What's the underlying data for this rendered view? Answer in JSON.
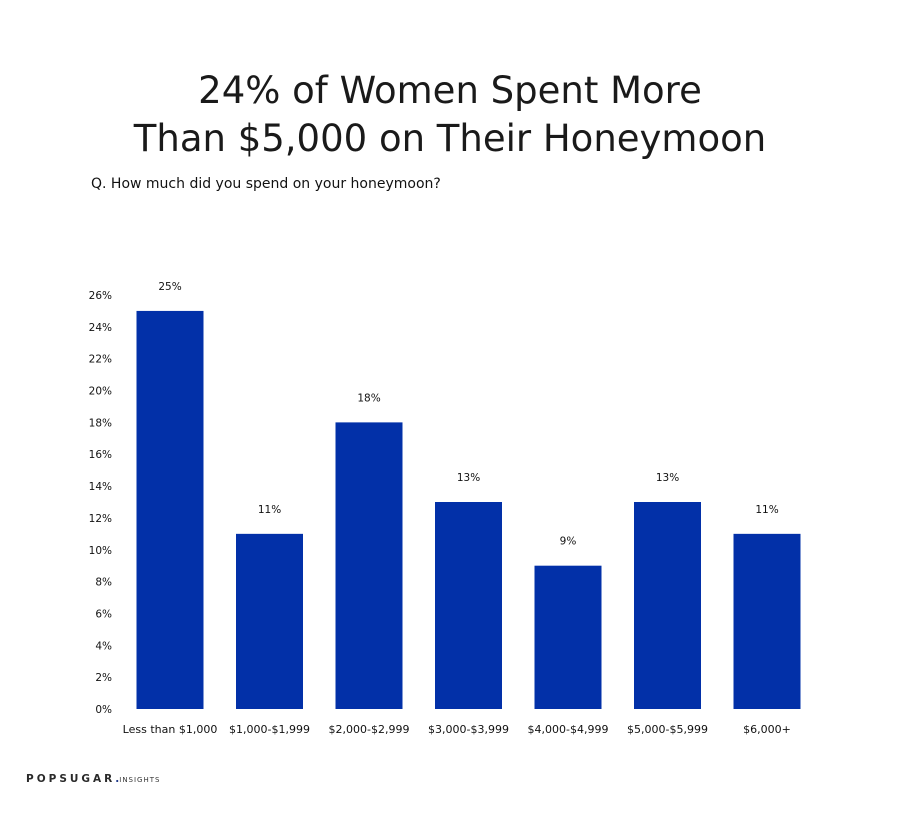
{
  "title_line1": "24% of Women Spent More",
  "title_line2": "Than $5,000 on Their Honeymoon",
  "question": "Q. How much did you spend on your honeymoon?",
  "brand": {
    "name": "POPSUGAR",
    "dot": ".",
    "suffix": "INSIGHTS"
  },
  "colors": {
    "bar": "#0230a8",
    "text": "#111111"
  },
  "chart_data": {
    "type": "bar",
    "categories": [
      "Less than $1,000",
      "$1,000-$1,999",
      "$2,000-$2,999",
      "$3,000-$3,999",
      "$4,000-$4,999",
      "$5,000-$5,999",
      "$6,000+"
    ],
    "values": [
      25,
      11,
      18,
      13,
      9,
      13,
      11
    ],
    "data_labels": [
      "25%",
      "11%",
      "18%",
      "13%",
      "9%",
      "13%",
      "11%"
    ],
    "y_ticks": [
      "0%",
      "2%",
      "4%",
      "6%",
      "8%",
      "10%",
      "12%",
      "14%",
      "16%",
      "18%",
      "20%",
      "22%",
      "24%",
      "26%"
    ],
    "ylim": [
      0,
      26
    ],
    "grid": false,
    "legend": "none",
    "title": "24% of Women Spent More Than $5,000 on Their Honeymoon",
    "xlabel": "",
    "ylabel": ""
  }
}
